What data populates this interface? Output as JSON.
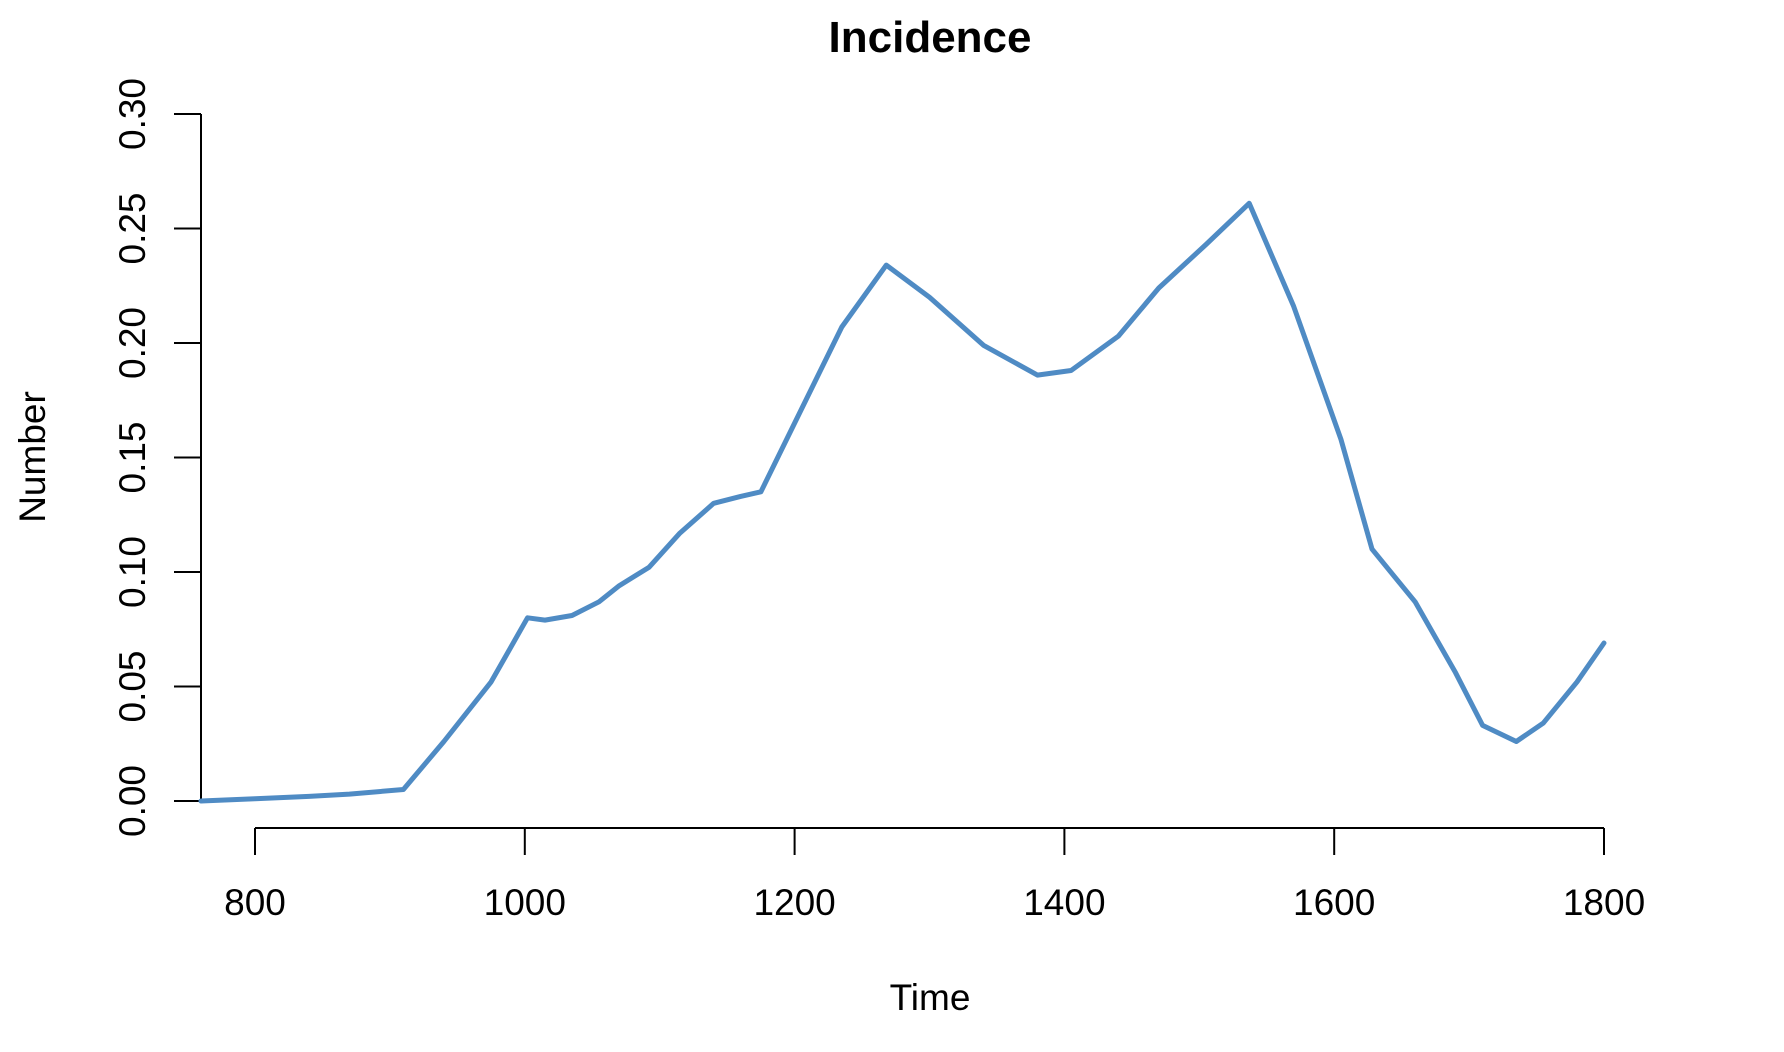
{
  "chart_data": {
    "type": "line",
    "title": "Incidence",
    "xlabel": "Time",
    "ylabel": "Number",
    "xlim": [
      760,
      1800
    ],
    "ylim": [
      0,
      0.3
    ],
    "x_ticks": [
      "800",
      "1000",
      "1200",
      "1400",
      "1600",
      "1800"
    ],
    "y_ticks": [
      "0.00",
      "0.05",
      "0.10",
      "0.15",
      "0.20",
      "0.25",
      "0.30"
    ],
    "grid": false,
    "line_color": "#4f8bc4",
    "series": [
      {
        "x": [
          760,
          800,
          840,
          870,
          910,
          940,
          975,
          1002,
          1015,
          1035,
          1055,
          1070,
          1092,
          1115,
          1140,
          1160,
          1175,
          1200,
          1235,
          1268,
          1300,
          1340,
          1380,
          1405,
          1440,
          1470,
          1505,
          1537,
          1570,
          1605,
          1628,
          1660,
          1690,
          1710,
          1735,
          1755,
          1780,
          1800
        ],
        "y": [
          0.0,
          0.001,
          0.002,
          0.003,
          0.005,
          0.026,
          0.052,
          0.08,
          0.079,
          0.081,
          0.087,
          0.094,
          0.102,
          0.117,
          0.13,
          0.133,
          0.135,
          0.165,
          0.207,
          0.234,
          0.22,
          0.199,
          0.186,
          0.188,
          0.203,
          0.224,
          0.243,
          0.261,
          0.216,
          0.158,
          0.11,
          0.087,
          0.056,
          0.033,
          0.026,
          0.034,
          0.052,
          0.069
        ]
      }
    ]
  }
}
